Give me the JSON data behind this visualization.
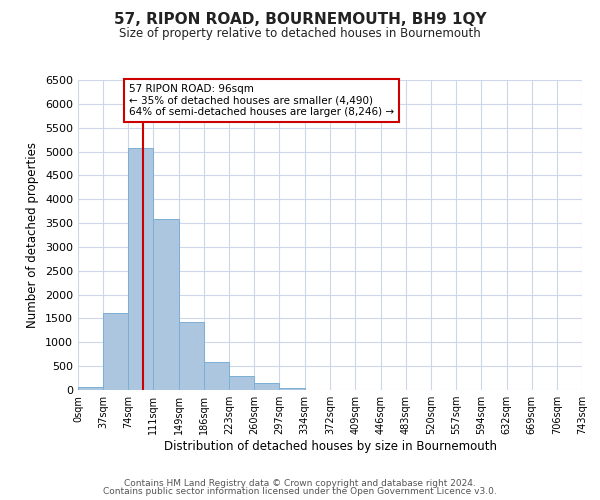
{
  "title": "57, RIPON ROAD, BOURNEMOUTH, BH9 1QY",
  "subtitle": "Size of property relative to detached houses in Bournemouth",
  "xlabel": "Distribution of detached houses by size in Bournemouth",
  "ylabel": "Number of detached properties",
  "bar_edges": [
    0,
    37,
    74,
    111,
    149,
    186,
    223,
    260,
    297,
    334,
    372,
    409,
    446,
    483,
    520,
    557,
    594,
    632,
    669,
    706,
    743
  ],
  "bar_heights": [
    60,
    1620,
    5080,
    3580,
    1420,
    580,
    300,
    140,
    50,
    0,
    0,
    0,
    0,
    0,
    0,
    0,
    0,
    0,
    0,
    0
  ],
  "bar_color": "#adc6e0",
  "bar_edgecolor": "#7bafd4",
  "property_line_x": 96,
  "property_line_color": "#cc0000",
  "ylim": [
    0,
    6500
  ],
  "xlim": [
    0,
    743
  ],
  "annotation_line1": "57 RIPON ROAD: 96sqm",
  "annotation_line2": "← 35% of detached houses are smaller (4,490)",
  "annotation_line3": "64% of semi-detached houses are larger (8,246) →",
  "annotation_box_color": "#ffffff",
  "annotation_box_edgecolor": "#cc0000",
  "footer1": "Contains HM Land Registry data © Crown copyright and database right 2024.",
  "footer2": "Contains public sector information licensed under the Open Government Licence v3.0.",
  "tick_labels": [
    "0sqm",
    "37sqm",
    "74sqm",
    "111sqm",
    "149sqm",
    "186sqm",
    "223sqm",
    "260sqm",
    "297sqm",
    "334sqm",
    "372sqm",
    "409sqm",
    "446sqm",
    "483sqm",
    "520sqm",
    "557sqm",
    "594sqm",
    "632sqm",
    "669sqm",
    "706sqm",
    "743sqm"
  ],
  "yticks": [
    0,
    500,
    1000,
    1500,
    2000,
    2500,
    3000,
    3500,
    4000,
    4500,
    5000,
    5500,
    6000,
    6500
  ],
  "background_color": "#ffffff",
  "grid_color": "#ccd8ea"
}
